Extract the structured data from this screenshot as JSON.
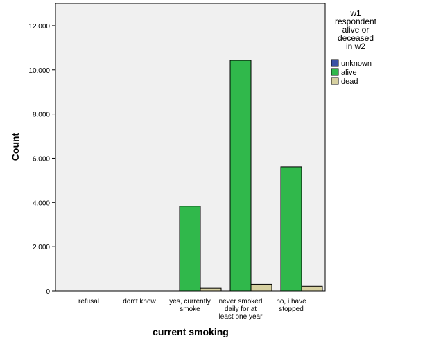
{
  "chart_data": {
    "type": "bar",
    "xlabel": "current smoking",
    "ylabel": "Count",
    "ylim": [
      0,
      13000
    ],
    "yticks": [
      0,
      2000,
      4000,
      6000,
      8000,
      10000,
      12000
    ],
    "ytick_labels": [
      "0",
      "2.000",
      "4.000",
      "6.000",
      "8.000",
      "10.000",
      "12.000"
    ],
    "categories": [
      [
        "refusal"
      ],
      [
        "don't know"
      ],
      [
        "yes, currently",
        "smoke"
      ],
      [
        "never smoked",
        "daily for at",
        "least one year"
      ],
      [
        "no, i have",
        "stopped"
      ]
    ],
    "legend_title": [
      "w1",
      "respondent",
      "alive or",
      "deceased",
      "in w2"
    ],
    "legend_position": "right",
    "series": [
      {
        "name": "unknown",
        "color": "#3a52a4",
        "values": [
          0,
          0,
          0,
          0,
          0
        ]
      },
      {
        "name": "alive",
        "color": "#30b84b",
        "values": [
          0,
          0,
          3830,
          10430,
          5610
        ]
      },
      {
        "name": "dead",
        "color": "#d6d0a0",
        "values": [
          0,
          0,
          120,
          300,
          210
        ]
      }
    ],
    "plot_background": "#f0f0f0"
  }
}
